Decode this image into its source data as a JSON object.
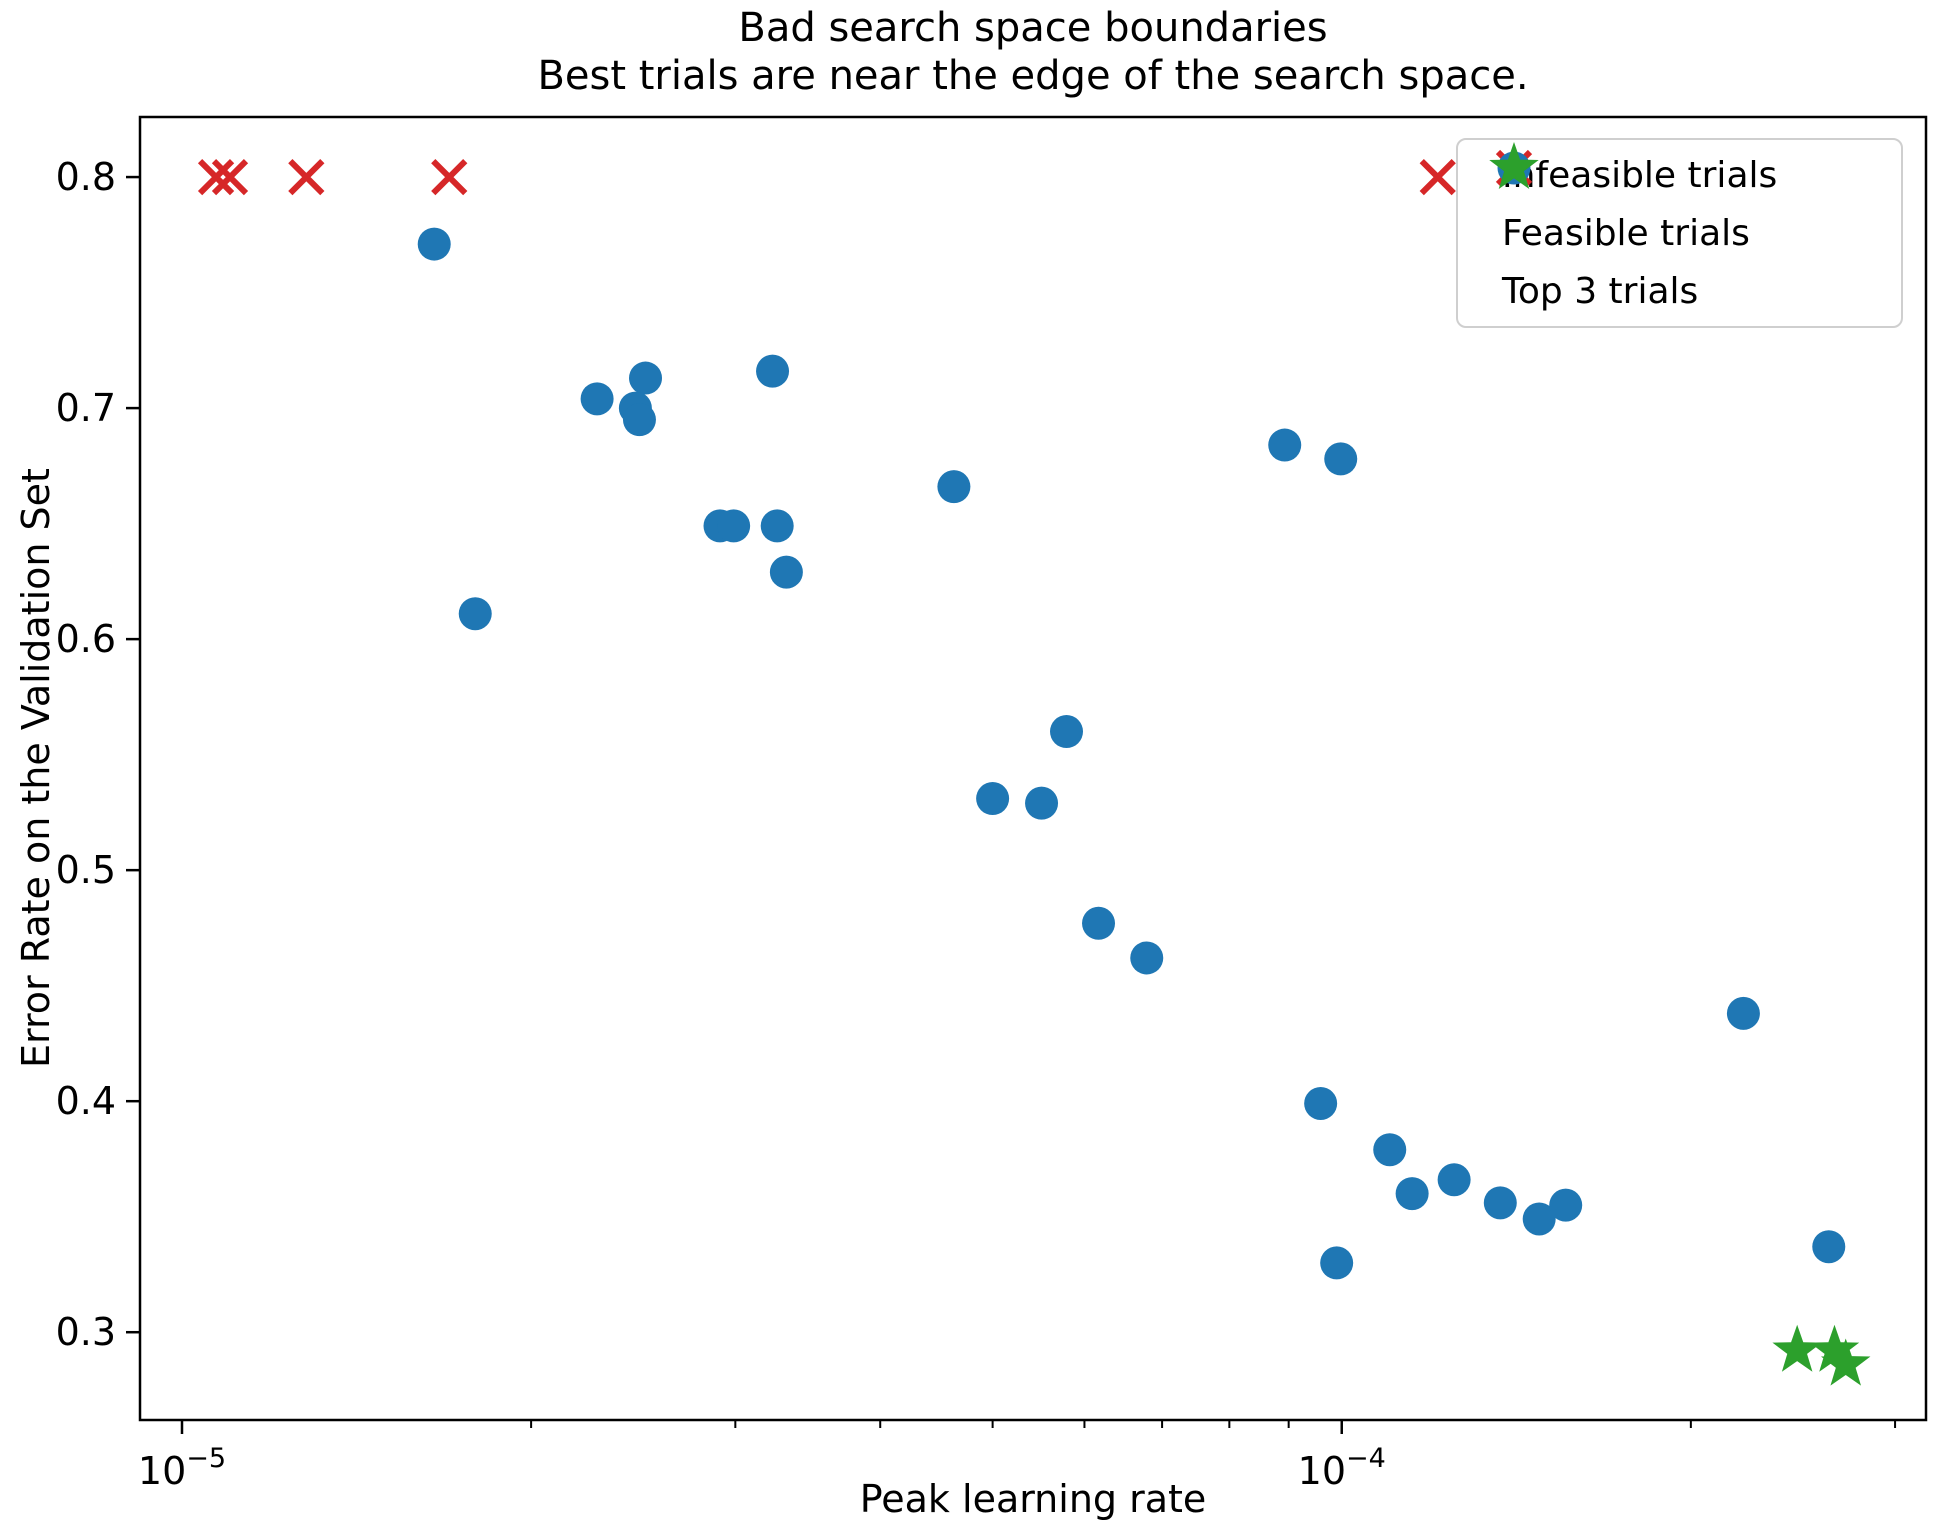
{
  "title": {
    "line1": "Bad search space boundaries",
    "line2": "Best trials are near the edge of the search space."
  },
  "axes": {
    "xlabel": "Peak learning rate",
    "ylabel": "Error Rate on the Validation Set"
  },
  "chart_data": {
    "type": "scatter",
    "xscale": "log",
    "xlim": [
      9.2e-06,
      0.000319
    ],
    "ylim": [
      0.262,
      0.826
    ],
    "grid": false,
    "legend_position": "upper right",
    "x_major_ticks": [
      {
        "value": 1e-05,
        "base": "10",
        "exp": "−5"
      },
      {
        "value": 0.0001,
        "base": "10",
        "exp": "−4"
      }
    ],
    "x_minor_ticks": [
      2e-05,
      3e-05,
      4e-05,
      5e-05,
      6e-05,
      7e-05,
      8e-05,
      9e-05,
      0.0002,
      0.0003
    ],
    "y_ticks": [
      0.3,
      0.4,
      0.5,
      0.6,
      0.7,
      0.8
    ],
    "series": [
      {
        "name": "Infeasible trials",
        "marker": "x",
        "color": "#d62728",
        "points": [
          [
            1.07e-05,
            0.8
          ],
          [
            1.1e-05,
            0.8
          ],
          [
            1.28e-05,
            0.8
          ],
          [
            1.7e-05,
            0.8
          ],
          [
            0.000121,
            0.8
          ]
        ]
      },
      {
        "name": "Feasible trials",
        "marker": "circle",
        "color": "#1f77b4",
        "points": [
          [
            1.65e-05,
            0.771
          ],
          [
            2.28e-05,
            0.704
          ],
          [
            2.51e-05,
            0.713
          ],
          [
            2.46e-05,
            0.7
          ],
          [
            2.48e-05,
            0.695
          ],
          [
            3.23e-05,
            0.716
          ],
          [
            2.91e-05,
            0.649
          ],
          [
            2.99e-05,
            0.649
          ],
          [
            3.26e-05,
            0.649
          ],
          [
            3.32e-05,
            0.629
          ],
          [
            1.79e-05,
            0.611
          ],
          [
            4.63e-05,
            0.666
          ],
          [
            8.93e-05,
            0.684
          ],
          [
            9.98e-05,
            0.678
          ],
          [
            5.79e-05,
            0.56
          ],
          [
            5e-05,
            0.531
          ],
          [
            5.51e-05,
            0.529
          ],
          [
            6.17e-05,
            0.477
          ],
          [
            6.79e-05,
            0.462
          ],
          [
            9.59e-05,
            0.399
          ],
          [
            0.00011,
            0.379
          ],
          [
            0.000115,
            0.36
          ],
          [
            0.000125,
            0.366
          ],
          [
            0.000137,
            0.356
          ],
          [
            0.000148,
            0.349
          ],
          [
            0.000156,
            0.355
          ],
          [
            9.9e-05,
            0.33
          ],
          [
            0.000222,
            0.438
          ],
          [
            0.000263,
            0.337
          ]
        ]
      },
      {
        "name": "Top 3 trials",
        "marker": "star",
        "color": "#2ca02c",
        "points": [
          [
            0.000247,
            0.292
          ],
          [
            0.000266,
            0.292
          ],
          [
            0.000272,
            0.286
          ]
        ]
      }
    ]
  }
}
